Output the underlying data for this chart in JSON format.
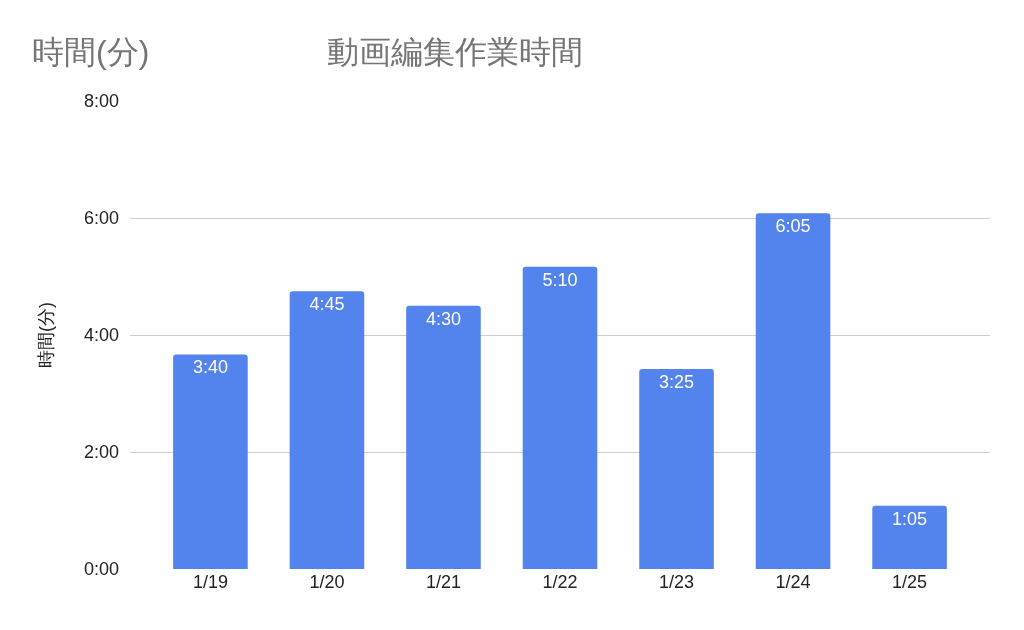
{
  "chart_data": {
    "type": "bar",
    "title": "動画編集作業時間",
    "ylabel": "時間(分)",
    "annotations": [
      "時間(分)"
    ],
    "categories": [
      "1/19",
      "1/20",
      "1/21",
      "1/22",
      "1/23",
      "1/24",
      "1/25"
    ],
    "values": [
      3.667,
      4.75,
      4.5,
      5.167,
      3.417,
      6.083,
      1.083
    ],
    "value_labels": [
      "3:40",
      "4:45",
      "4:30",
      "5:10",
      "3:25",
      "6:05",
      "1:05"
    ],
    "color": "#5383ec",
    "ylim": [
      0,
      8
    ],
    "yticks": [
      {
        "value": 0,
        "label": "0:00"
      },
      {
        "value": 2,
        "label": "2:00"
      },
      {
        "value": 4,
        "label": "4:00"
      },
      {
        "value": 6,
        "label": "6:00"
      },
      {
        "value": 8,
        "label": "8:00"
      }
    ],
    "grid": "y"
  }
}
